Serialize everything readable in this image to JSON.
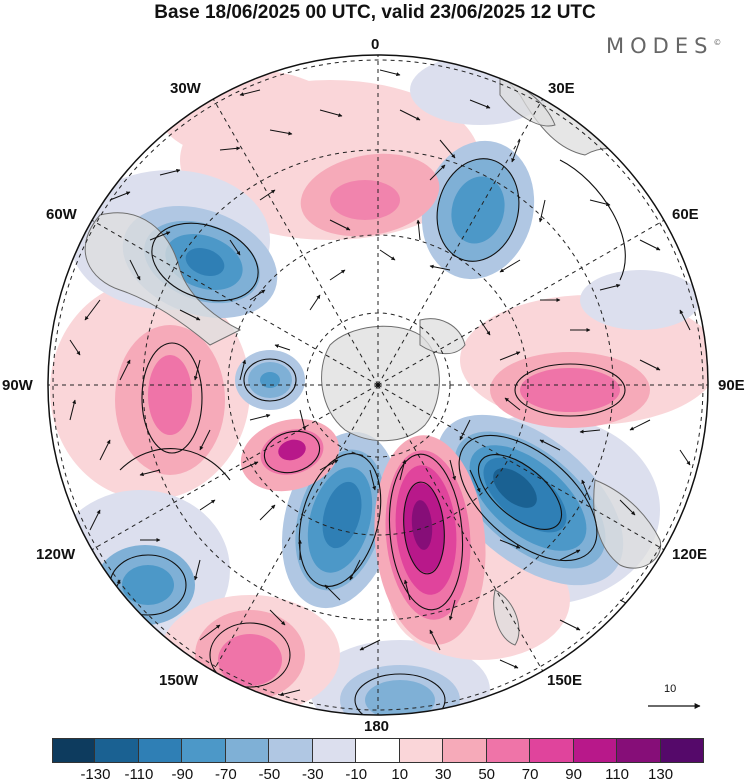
{
  "title": "Base 18/06/2025 00 UTC, valid 23/06/2025 12 UTC",
  "brand": "MODES",
  "brand_mark": "©",
  "longitude_labels": {
    "top": "0",
    "top_right": "30E",
    "right_upper": "60E",
    "right": "90E",
    "right_lower": "120E",
    "bottom_right": "150E",
    "bottom": "180",
    "bottom_left": "150W",
    "left_lower": "120W",
    "left": "90W",
    "left_upper": "60W",
    "top_left": "30W"
  },
  "vector_reference": {
    "label": "10"
  },
  "colorbar": {
    "ticks": [
      "-130",
      "-110",
      "-90",
      "-70",
      "-50",
      "-30",
      "-10",
      "10",
      "30",
      "50",
      "70",
      "90",
      "110",
      "130"
    ],
    "colors": [
      "#0d3b5e",
      "#1a6192",
      "#2f7fb5",
      "#4c98c8",
      "#7fb0d6",
      "#b0c7e3",
      "#dcdfee",
      "#ffffff",
      "#fad6d9",
      "#f6aab9",
      "#ef74a8",
      "#e0449c",
      "#b8188a",
      "#860e78",
      "#55096a"
    ]
  },
  "map_colors": {
    "land": "#dedede",
    "coast": "#6e6e6e",
    "grid": "#222222",
    "arrow": "#111111"
  }
}
